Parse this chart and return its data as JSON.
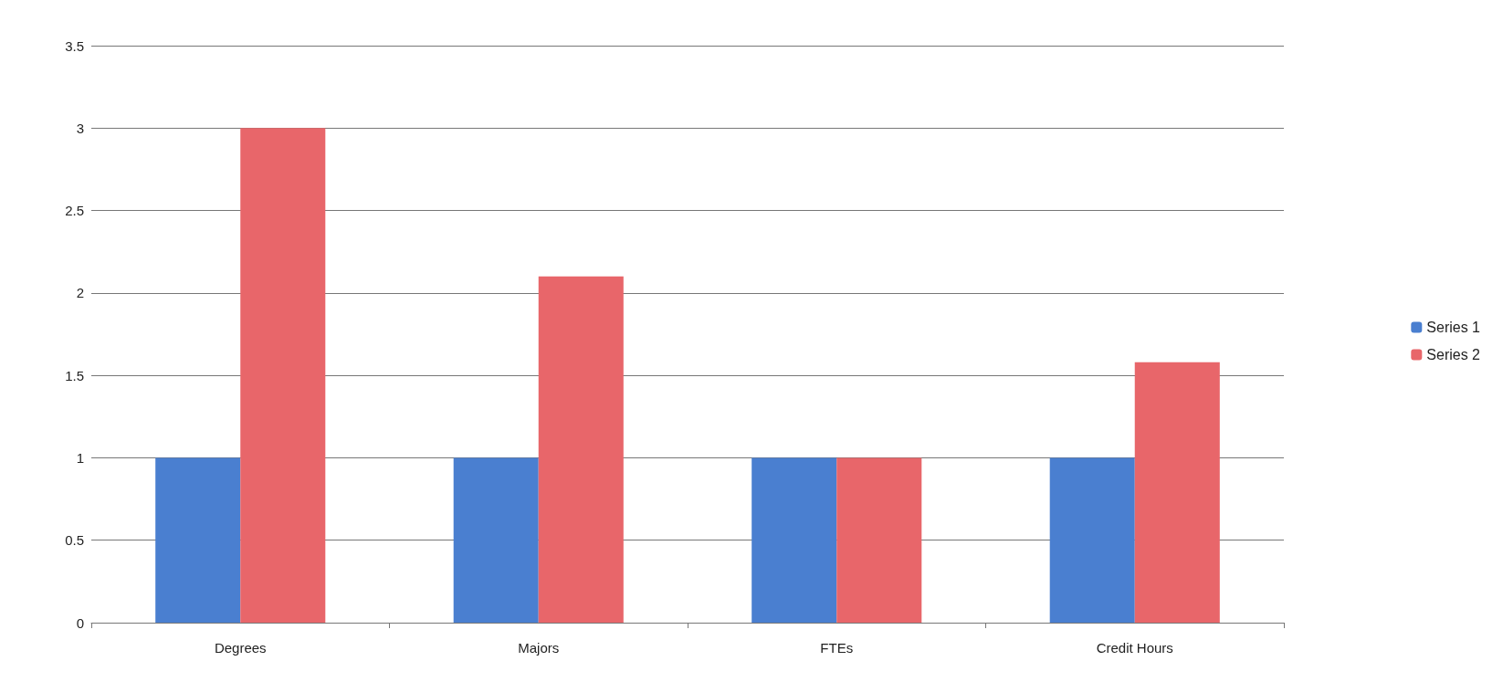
{
  "chart_data": {
    "type": "bar",
    "categories": [
      "Degrees",
      "Majors",
      "FTEs",
      "Credit Hours"
    ],
    "series": [
      {
        "name": "Series 1",
        "color": "#4a7fd0",
        "values": [
          1,
          1,
          1,
          1
        ]
      },
      {
        "name": "Series 2",
        "color": "#e8666a",
        "values": [
          3,
          2.1,
          1,
          1.58
        ]
      }
    ],
    "ylim": [
      0,
      3.5
    ],
    "yticks": [
      0,
      0.5,
      1,
      1.5,
      2,
      2.5,
      3,
      3.5
    ],
    "grid": "y",
    "legend": "right"
  }
}
